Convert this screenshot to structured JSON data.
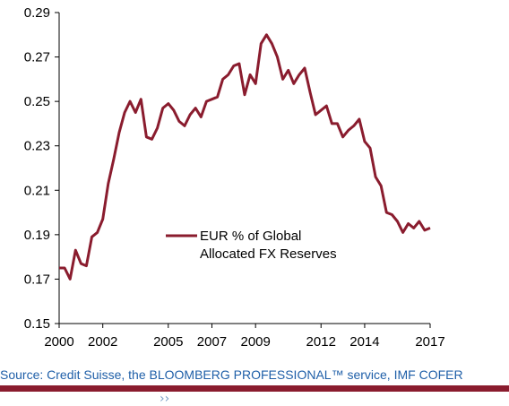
{
  "chart_data": {
    "type": "line",
    "title": "",
    "xlabel": "",
    "ylabel": "",
    "x_tick_labels": [
      "2000",
      "2002",
      "2005",
      "2007",
      "2009",
      "2012",
      "2014",
      "2017"
    ],
    "y_tick_labels": [
      "0.15",
      "0.17",
      "0.19",
      "0.21",
      "0.23",
      "0.25",
      "0.27",
      "0.29"
    ],
    "ylim": [
      0.15,
      0.29
    ],
    "xlim": [
      2000,
      2017
    ],
    "grid": false,
    "legend_position": "center",
    "series": [
      {
        "name": "EUR % of Global Allocated FX Reserves",
        "color": "#8a1c2e",
        "x": [
          2000.0,
          2000.25,
          2000.5,
          2000.75,
          2001.0,
          2001.25,
          2001.5,
          2001.75,
          2002.0,
          2002.25,
          2002.5,
          2002.75,
          2003.0,
          2003.25,
          2003.5,
          2003.75,
          2004.0,
          2004.25,
          2004.5,
          2004.75,
          2005.0,
          2005.25,
          2005.5,
          2005.75,
          2006.0,
          2006.25,
          2006.5,
          2006.75,
          2007.0,
          2007.25,
          2007.5,
          2007.75,
          2008.0,
          2008.25,
          2008.5,
          2008.75,
          2009.0,
          2009.25,
          2009.5,
          2009.75,
          2010.0,
          2010.25,
          2010.5,
          2010.75,
          2011.0,
          2011.25,
          2011.5,
          2011.75,
          2012.0,
          2012.25,
          2012.5,
          2012.75,
          2013.0,
          2013.25,
          2013.5,
          2013.75,
          2014.0,
          2014.25,
          2014.5,
          2014.75,
          2015.0,
          2015.25,
          2015.5,
          2015.75,
          2016.0,
          2016.25,
          2016.5,
          2016.75,
          2017.0
        ],
        "values": [
          0.175,
          0.175,
          0.17,
          0.183,
          0.177,
          0.176,
          0.189,
          0.191,
          0.197,
          0.213,
          0.224,
          0.236,
          0.245,
          0.25,
          0.245,
          0.251,
          0.234,
          0.233,
          0.238,
          0.247,
          0.249,
          0.246,
          0.241,
          0.239,
          0.244,
          0.247,
          0.243,
          0.25,
          0.251,
          0.252,
          0.26,
          0.262,
          0.266,
          0.267,
          0.253,
          0.262,
          0.258,
          0.276,
          0.28,
          0.276,
          0.27,
          0.26,
          0.264,
          0.258,
          0.262,
          0.265,
          0.254,
          0.244,
          0.246,
          0.248,
          0.24,
          0.24,
          0.234,
          0.237,
          0.239,
          0.242,
          0.232,
          0.229,
          0.216,
          0.212,
          0.2,
          0.199,
          0.196,
          0.191,
          0.195,
          0.193,
          0.196,
          0.192,
          0.193
        ]
      }
    ]
  },
  "legend": {
    "line1": "EUR % of Global",
    "line2": "Allocated FX Reserves"
  },
  "source": "Source: Credit Suisse, the BLOOMBERG PROFESSIONAL™ service, IMF COFER",
  "footer_glyph": "››",
  "colors": {
    "series": "#8a1c2e",
    "source_text": "#1f5fa8",
    "rule": "#8a1c2e"
  }
}
